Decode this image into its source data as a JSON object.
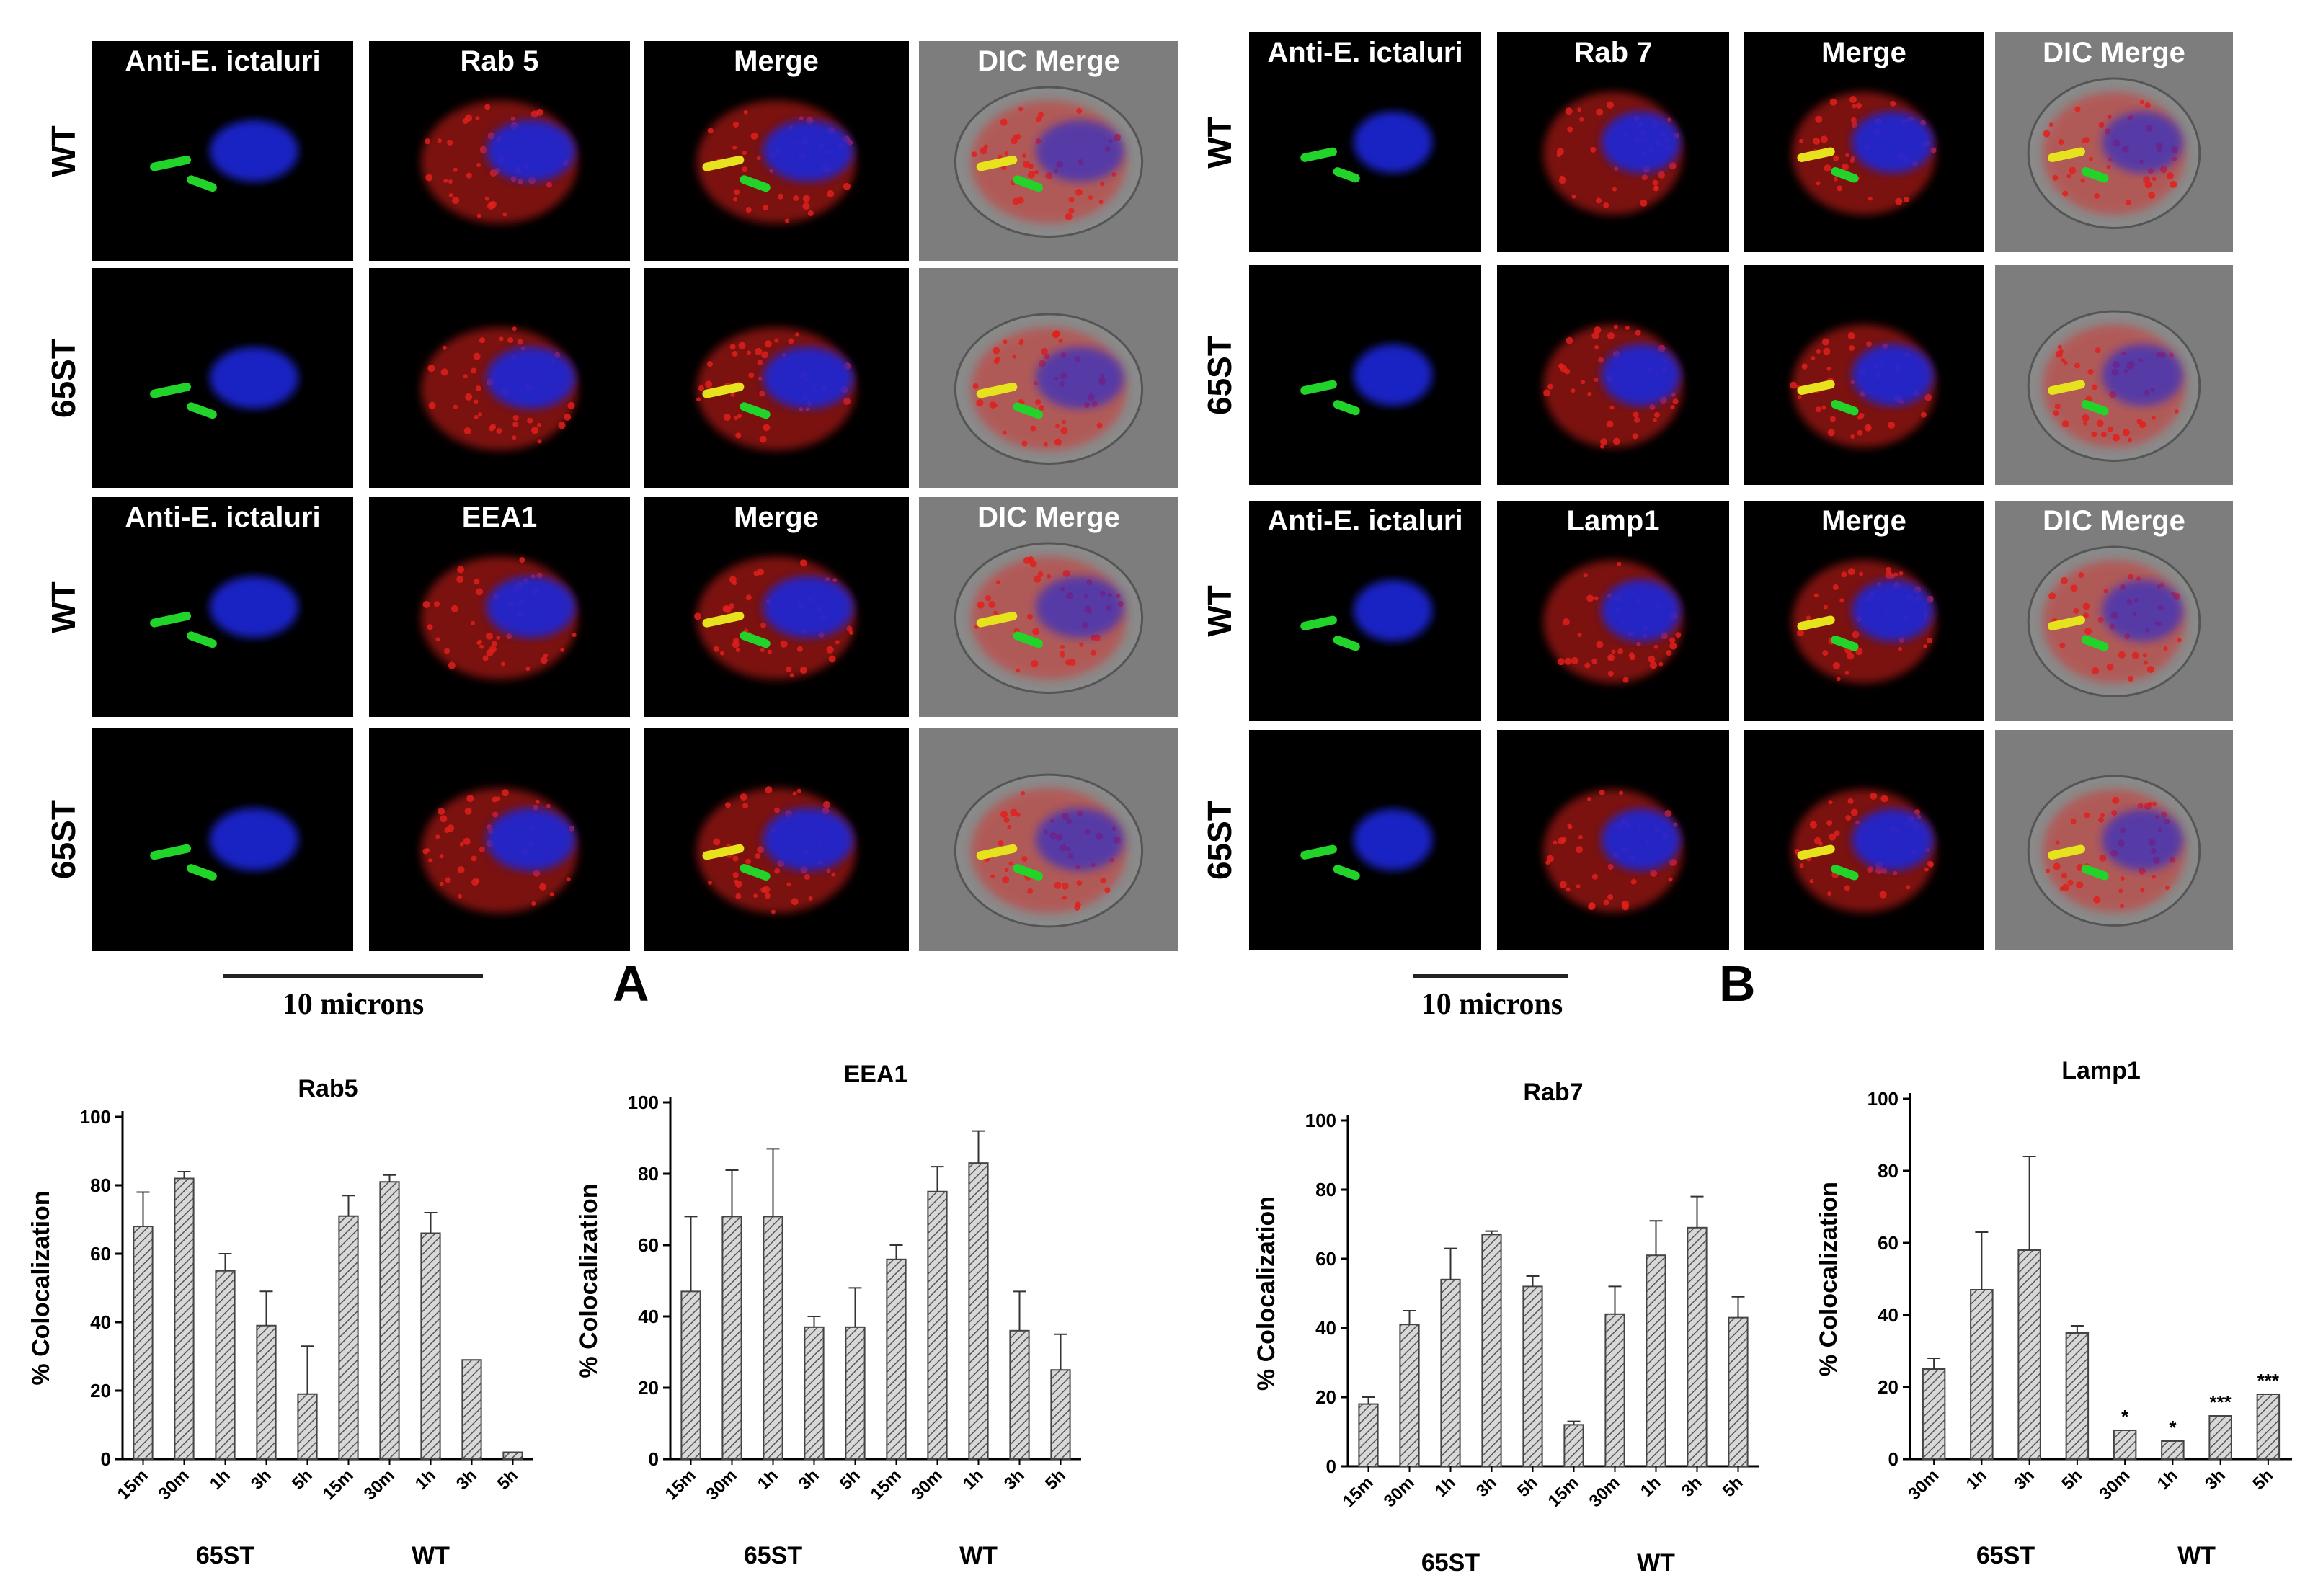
{
  "figure": {
    "panel_a_label": "A",
    "panel_b_label": "B",
    "scale_a": "10 microns",
    "scale_b": "10 microns"
  },
  "micrographs_a": {
    "header_top": [
      "Anti-E. ictaluri",
      "Rab 5",
      "Merge",
      "DIC Merge"
    ],
    "header_bottom": [
      "Anti-E. ictaluri",
      "EEA1",
      "Merge",
      "DIC Merge"
    ],
    "rows": [
      "WT",
      "65ST",
      "WT",
      "65ST"
    ]
  },
  "micrographs_b": {
    "header_top": [
      "Anti-E. ictaluri",
      "Rab 7",
      "Merge",
      "DIC Merge"
    ],
    "header_bottom": [
      "Anti-E. ictaluri",
      "Lamp1",
      "Merge",
      "DIC Merge"
    ],
    "rows": [
      "WT",
      "65ST",
      "WT",
      "65ST"
    ]
  },
  "colors": {
    "nucleus": "#1a28d8",
    "bacteria": "#22d42a",
    "marker": "#e0201c",
    "overlap": "#e6e21e"
  },
  "chart_data": [
    {
      "type": "bar",
      "title": "Rab5",
      "ylabel": "% Colocalization",
      "ylim": [
        0,
        100
      ],
      "yticks": [
        "0",
        "20",
        "40",
        "60",
        "80",
        "100"
      ],
      "categories": [
        "15m",
        "30m",
        "1h",
        "3h",
        "5h",
        "15m",
        "30m",
        "1h",
        "3h",
        "5h"
      ],
      "values": [
        68,
        82,
        55,
        39,
        19,
        71,
        81,
        66,
        29,
        2
      ],
      "errors": [
        10,
        2,
        5,
        10,
        14,
        6,
        2,
        6,
        0,
        0
      ],
      "groups": [
        "65ST",
        "WT"
      ],
      "significance": [
        "",
        "",
        "",
        "",
        "",
        "",
        "",
        "",
        "",
        ""
      ]
    },
    {
      "type": "bar",
      "title": "EEA1",
      "ylabel": "% Colocalization",
      "ylim": [
        0,
        100
      ],
      "yticks": [
        "0",
        "20",
        "40",
        "60",
        "80",
        "100"
      ],
      "categories": [
        "15m",
        "30m",
        "1h",
        "3h",
        "5h",
        "15m",
        "30m",
        "1h",
        "3h",
        "5h"
      ],
      "values": [
        47,
        68,
        68,
        37,
        37,
        56,
        75,
        83,
        36,
        25
      ],
      "errors": [
        21,
        13,
        19,
        3,
        11,
        4,
        7,
        9,
        11,
        10
      ],
      "groups": [
        "65ST",
        "WT"
      ],
      "significance": [
        "",
        "",
        "",
        "",
        "",
        "",
        "",
        "",
        "",
        ""
      ]
    },
    {
      "type": "bar",
      "title": "Rab7",
      "ylabel": "% Colocalization",
      "ylim": [
        0,
        100
      ],
      "yticks": [
        "0",
        "20",
        "40",
        "60",
        "80",
        "100"
      ],
      "categories": [
        "15m",
        "30m",
        "1h",
        "3h",
        "5h",
        "15m",
        "30m",
        "1h",
        "3h",
        "5h"
      ],
      "values": [
        18,
        41,
        54,
        67,
        52,
        12,
        44,
        61,
        69,
        43
      ],
      "errors": [
        2,
        4,
        9,
        1,
        3,
        1,
        8,
        10,
        9,
        6
      ],
      "groups": [
        "65ST",
        "WT"
      ],
      "significance": [
        "",
        "",
        "",
        "",
        "",
        "",
        "",
        "",
        "",
        ""
      ]
    },
    {
      "type": "bar",
      "title": "Lamp1",
      "ylabel": "% Colocalization",
      "ylim": [
        0,
        100
      ],
      "yticks": [
        "0",
        "20",
        "40",
        "60",
        "80",
        "100"
      ],
      "categories": [
        "30m",
        "1h",
        "3h",
        "5h",
        "30m",
        "1h",
        "3h",
        "5h"
      ],
      "values": [
        25,
        47,
        58,
        35,
        8,
        5,
        12,
        18
      ],
      "errors": [
        3,
        16,
        26,
        2,
        0,
        0,
        0,
        0
      ],
      "groups": [
        "65ST",
        "WT"
      ],
      "significance": [
        "",
        "",
        "",
        "",
        "*",
        "*",
        "***",
        "***"
      ]
    }
  ]
}
